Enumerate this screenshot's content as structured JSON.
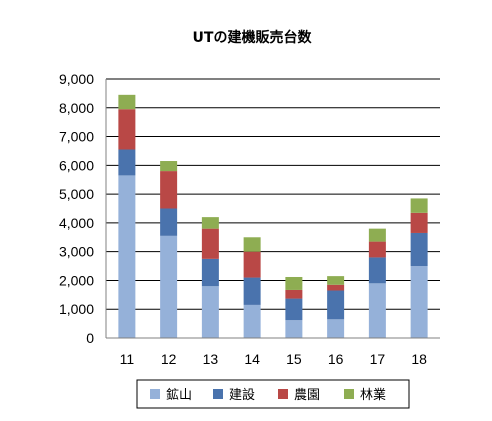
{
  "chart_data": {
    "type": "bar",
    "stacked": true,
    "title": "UTの建機販売台数",
    "xlabel": "",
    "ylabel": "",
    "categories": [
      "11",
      "12",
      "13",
      "14",
      "15",
      "16",
      "17",
      "18"
    ],
    "ylim": [
      0,
      9000
    ],
    "y_ticks": [
      0,
      1000,
      2000,
      3000,
      4000,
      5000,
      6000,
      7000,
      8000,
      9000
    ],
    "y_tick_labels": [
      "0",
      "1,000",
      "2,000",
      "3,000",
      "4,000",
      "5,000",
      "6,000",
      "7,000",
      "8,000",
      "9,000"
    ],
    "grid": true,
    "legend_position": "bottom",
    "series": [
      {
        "name": "鉱山",
        "color": "#95b1d9",
        "values": [
          5650,
          3550,
          1800,
          1150,
          620,
          650,
          1900,
          2500
        ]
      },
      {
        "name": "建設",
        "color": "#4a73ad",
        "values": [
          900,
          950,
          950,
          950,
          750,
          1000,
          900,
          1150
        ]
      },
      {
        "name": "農園",
        "color": "#b94846",
        "values": [
          1400,
          1300,
          1050,
          900,
          300,
          200,
          550,
          700
        ]
      },
      {
        "name": "林業",
        "color": "#8ead52",
        "values": [
          500,
          350,
          400,
          500,
          450,
          300,
          450,
          500
        ]
      }
    ]
  }
}
